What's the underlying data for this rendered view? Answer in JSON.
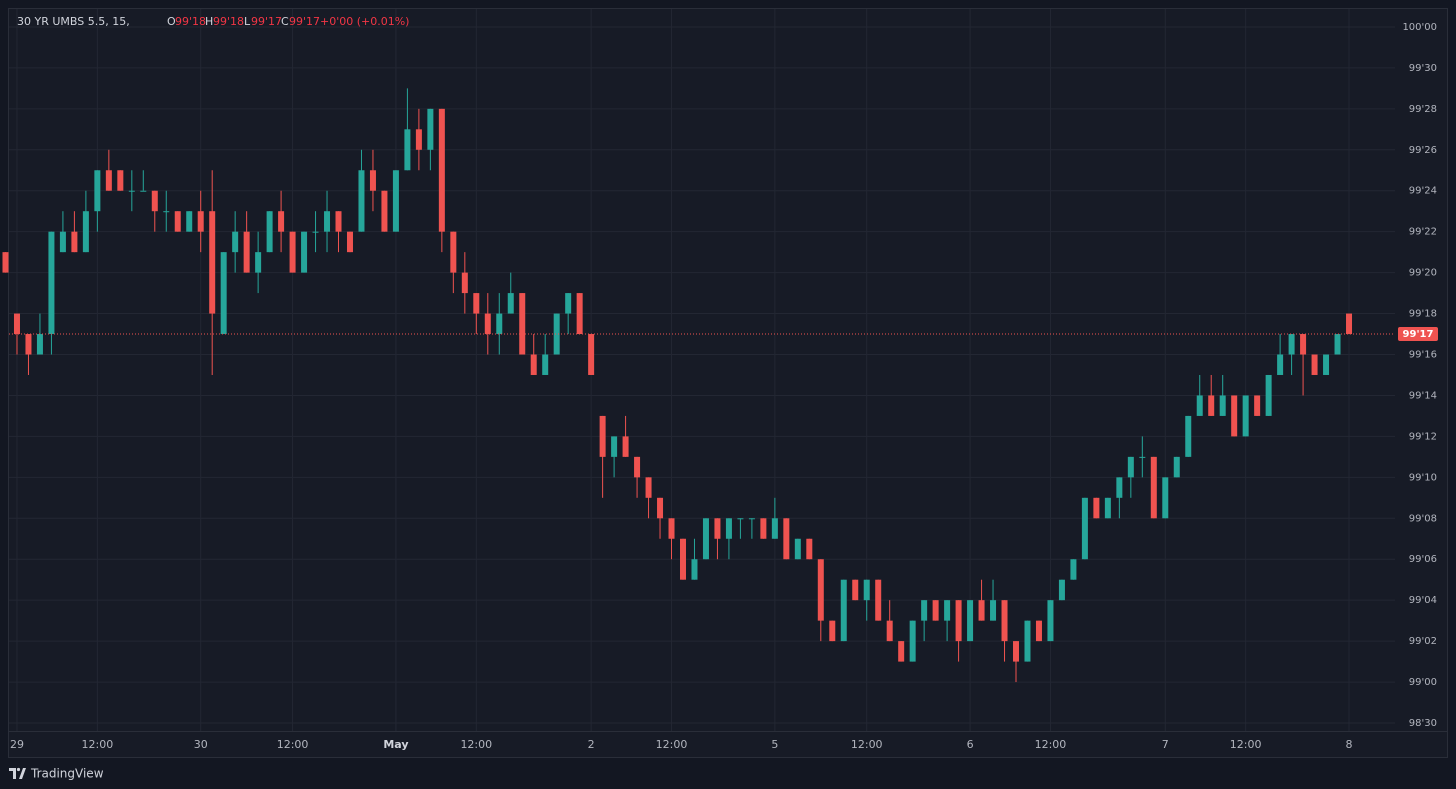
{
  "chart_data": {
    "type": "candlestick",
    "legend": {
      "symbol": "30 YR UMBS 5.5, 15,",
      "o_key": "O",
      "o": "99'18",
      "h_key": "H",
      "h": "99'18",
      "l_key": "L",
      "l": "99'17",
      "c_key": "C",
      "c": "99'17",
      "change": "+0'00 (+0.01%)"
    },
    "brand": "TradingView",
    "up_color": "#26a69a",
    "down_color": "#ef5350",
    "grid": true,
    "last_price": {
      "value": 99.53125,
      "label": "99'17"
    },
    "ylim": [
      98.9253,
      100.0274
    ],
    "yticks": [
      {
        "value": 98.9375,
        "label": "98'30"
      },
      {
        "value": 99,
        "label": "99'00"
      },
      {
        "value": 99.0625,
        "label": "99'02"
      },
      {
        "value": 99.125,
        "label": "99'04"
      },
      {
        "value": 99.1875,
        "label": "99'06"
      },
      {
        "value": 99.25,
        "label": "99'08"
      },
      {
        "value": 99.3125,
        "label": "99'10"
      },
      {
        "value": 99.375,
        "label": "99'12"
      },
      {
        "value": 99.4375,
        "label": "99'14"
      },
      {
        "value": 99.5,
        "label": "99'16"
      },
      {
        "value": 99.5625,
        "label": "99'18"
      },
      {
        "value": 99.625,
        "label": "99'20"
      },
      {
        "value": 99.6875,
        "label": "99'22"
      },
      {
        "value": 99.75,
        "label": "99'24"
      },
      {
        "value": 99.8125,
        "label": "99'26"
      },
      {
        "value": 99.875,
        "label": "99'28"
      },
      {
        "value": 99.9375,
        "label": "99'30"
      },
      {
        "value": 100,
        "label": "100'00"
      }
    ],
    "categories": [
      null,
      "29",
      null,
      null,
      null,
      null,
      null,
      null,
      "12:00",
      null,
      null,
      null,
      null,
      null,
      null,
      null,
      null,
      "30",
      null,
      null,
      null,
      null,
      null,
      null,
      null,
      "12:00",
      null,
      null,
      null,
      null,
      null,
      null,
      null,
      null,
      "May",
      null,
      null,
      null,
      null,
      null,
      null,
      "12:00",
      null,
      null,
      null,
      null,
      null,
      null,
      null,
      null,
      null,
      "2",
      null,
      null,
      null,
      null,
      null,
      null,
      "12:00",
      null,
      null,
      null,
      null,
      null,
      null,
      null,
      null,
      "5",
      null,
      null,
      null,
      null,
      null,
      null,
      null,
      "12:00",
      null,
      null,
      null,
      null,
      null,
      null,
      null,
      null,
      "6",
      null,
      null,
      null,
      null,
      null,
      null,
      "12:00",
      null,
      null,
      null,
      null,
      null,
      null,
      null,
      null,
      null,
      "7",
      null,
      null,
      null,
      null,
      null,
      null,
      "12:00",
      null,
      null,
      null,
      null,
      null,
      null,
      null,
      null,
      "8"
    ],
    "open": [
      99.65625,
      99.5625,
      99.53125,
      99.5,
      99.53125,
      99.65625,
      99.6875,
      99.65625,
      99.71875,
      99.78125,
      99.78125,
      99.75,
      99.75,
      99.75,
      99.71875,
      99.71875,
      99.6875,
      99.71875,
      99.71875,
      99.53125,
      99.65625,
      99.6875,
      99.625,
      99.65625,
      99.71875,
      99.6875,
      99.625,
      99.6875,
      99.6875,
      99.71875,
      99.6875,
      99.6875,
      99.78125,
      99.75,
      99.6875,
      99.78125,
      99.84375,
      99.8125,
      99.875,
      99.6875,
      99.625,
      99.59375,
      99.5625,
      99.53125,
      99.5625,
      99.59375,
      99.5,
      99.46875,
      99.5,
      99.5625,
      99.59375,
      99.53125,
      99.40625,
      99.34375,
      99.375,
      99.34375,
      99.3125,
      99.28125,
      99.25,
      99.21875,
      99.15625,
      99.1875,
      99.25,
      99.21875,
      99.25,
      99.25,
      99.25,
      99.21875,
      99.25,
      99.1875,
      99.21875,
      99.1875,
      99.09375,
      99.0625,
      99.15625,
      99.125,
      99.15625,
      99.09375,
      99.0625,
      99.03125,
      99.09375,
      99.125,
      99.09375,
      99.125,
      99.0625,
      99.125,
      99.09375,
      99.125,
      99.0625,
      99.03125,
      99.09375,
      99.0625,
      99.125,
      99.15625,
      99.1875,
      99.28125,
      99.25,
      99.28125,
      99.3125,
      99.34375,
      99.34375,
      99.25,
      99.3125,
      99.34375,
      99.40625,
      99.4375,
      99.40625,
      99.4375,
      99.375,
      99.4375,
      99.40625,
      99.46875,
      99.5,
      99.53125,
      99.5,
      99.46875,
      99.5,
      99.5625
    ],
    "high": [
      99.65625,
      99.5625,
      99.53125,
      99.5625,
      99.6875,
      99.71875,
      99.71875,
      99.75,
      99.78125,
      99.8125,
      99.78125,
      99.78125,
      99.78125,
      99.75,
      99.75,
      99.71875,
      99.71875,
      99.75,
      99.78125,
      99.65625,
      99.71875,
      99.71875,
      99.6875,
      99.71875,
      99.75,
      99.6875,
      99.6875,
      99.71875,
      99.75,
      99.71875,
      99.6875,
      99.8125,
      99.8125,
      99.75,
      99.78125,
      99.90625,
      99.875,
      99.875,
      99.875,
      99.6875,
      99.65625,
      99.59375,
      99.59375,
      99.59375,
      99.625,
      99.59375,
      99.53125,
      99.53125,
      99.5625,
      99.59375,
      99.59375,
      99.53125,
      99.40625,
      99.375,
      99.40625,
      99.34375,
      99.3125,
      99.28125,
      99.25,
      99.21875,
      99.21875,
      99.25,
      99.25,
      99.25,
      99.25,
      99.25,
      99.25,
      99.28125,
      99.25,
      99.21875,
      99.21875,
      99.1875,
      99.09375,
      99.15625,
      99.15625,
      99.15625,
      99.15625,
      99.125,
      99.0625,
      99.09375,
      99.125,
      99.125,
      99.125,
      99.125,
      99.125,
      99.15625,
      99.15625,
      99.125,
      99.0625,
      99.09375,
      99.09375,
      99.125,
      99.15625,
      99.1875,
      99.28125,
      99.28125,
      99.28125,
      99.3125,
      99.34375,
      99.375,
      99.34375,
      99.3125,
      99.34375,
      99.40625,
      99.46875,
      99.46875,
      99.46875,
      99.4375,
      99.4375,
      99.4375,
      99.46875,
      99.53125,
      99.53125,
      99.53125,
      99.5,
      99.5,
      99.53125,
      99.5625
    ],
    "low": [
      99.625,
      99.5,
      99.46875,
      99.5,
      99.5,
      99.65625,
      99.65625,
      99.65625,
      99.6875,
      99.75,
      99.75,
      99.71875,
      99.75,
      99.6875,
      99.6875,
      99.6875,
      99.6875,
      99.65625,
      99.46875,
      99.53125,
      99.625,
      99.625,
      99.59375,
      99.65625,
      99.65625,
      99.625,
      99.625,
      99.65625,
      99.65625,
      99.65625,
      99.65625,
      99.6875,
      99.71875,
      99.6875,
      99.6875,
      99.78125,
      99.78125,
      99.78125,
      99.65625,
      99.59375,
      99.5625,
      99.53125,
      99.5,
      99.5,
      99.5625,
      99.5,
      99.46875,
      99.46875,
      99.5,
      99.53125,
      99.53125,
      99.46875,
      99.28125,
      99.3125,
      99.34375,
      99.28125,
      99.25,
      99.21875,
      99.1875,
      99.15625,
      99.15625,
      99.1875,
      99.1875,
      99.1875,
      99.21875,
      99.21875,
      99.21875,
      99.21875,
      99.1875,
      99.1875,
      99.1875,
      99.0625,
      99.0625,
      99.0625,
      99.125,
      99.09375,
      99.09375,
      99.0625,
      99.03125,
      99.03125,
      99.0625,
      99.09375,
      99.0625,
      99.03125,
      99.0625,
      99.09375,
      99.09375,
      99.03125,
      99,
      99.03125,
      99.0625,
      99.0625,
      99.125,
      99.15625,
      99.1875,
      99.25,
      99.25,
      99.25,
      99.28125,
      99.3125,
      99.25,
      99.25,
      99.3125,
      99.34375,
      99.40625,
      99.40625,
      99.40625,
      99.375,
      99.375,
      99.40625,
      99.40625,
      99.46875,
      99.46875,
      99.4375,
      99.46875,
      99.46875,
      99.5,
      99.53125
    ],
    "close": [
      99.625,
      99.53125,
      99.5,
      99.53125,
      99.6875,
      99.6875,
      99.65625,
      99.71875,
      99.78125,
      99.75,
      99.75,
      99.75,
      99.75,
      99.71875,
      99.71875,
      99.6875,
      99.71875,
      99.6875,
      99.5625,
      99.65625,
      99.6875,
      99.625,
      99.65625,
      99.71875,
      99.6875,
      99.625,
      99.6875,
      99.6875,
      99.71875,
      99.6875,
      99.65625,
      99.78125,
      99.75,
      99.6875,
      99.78125,
      99.84375,
      99.8125,
      99.875,
      99.6875,
      99.625,
      99.59375,
      99.5625,
      99.53125,
      99.5625,
      99.59375,
      99.5,
      99.46875,
      99.5,
      99.5625,
      99.59375,
      99.53125,
      99.46875,
      99.34375,
      99.375,
      99.34375,
      99.3125,
      99.28125,
      99.25,
      99.21875,
      99.15625,
      99.1875,
      99.25,
      99.21875,
      99.25,
      99.25,
      99.25,
      99.21875,
      99.25,
      99.1875,
      99.21875,
      99.1875,
      99.09375,
      99.0625,
      99.15625,
      99.125,
      99.15625,
      99.09375,
      99.0625,
      99.03125,
      99.09375,
      99.125,
      99.09375,
      99.125,
      99.0625,
      99.125,
      99.09375,
      99.125,
      99.0625,
      99.03125,
      99.09375,
      99.0625,
      99.125,
      99.15625,
      99.1875,
      99.28125,
      99.25,
      99.28125,
      99.3125,
      99.34375,
      99.34375,
      99.25,
      99.3125,
      99.34375,
      99.40625,
      99.4375,
      99.40625,
      99.4375,
      99.375,
      99.4375,
      99.40625,
      99.46875,
      99.5,
      99.53125,
      99.5,
      99.46875,
      99.5,
      99.53125,
      99.53125
    ]
  }
}
